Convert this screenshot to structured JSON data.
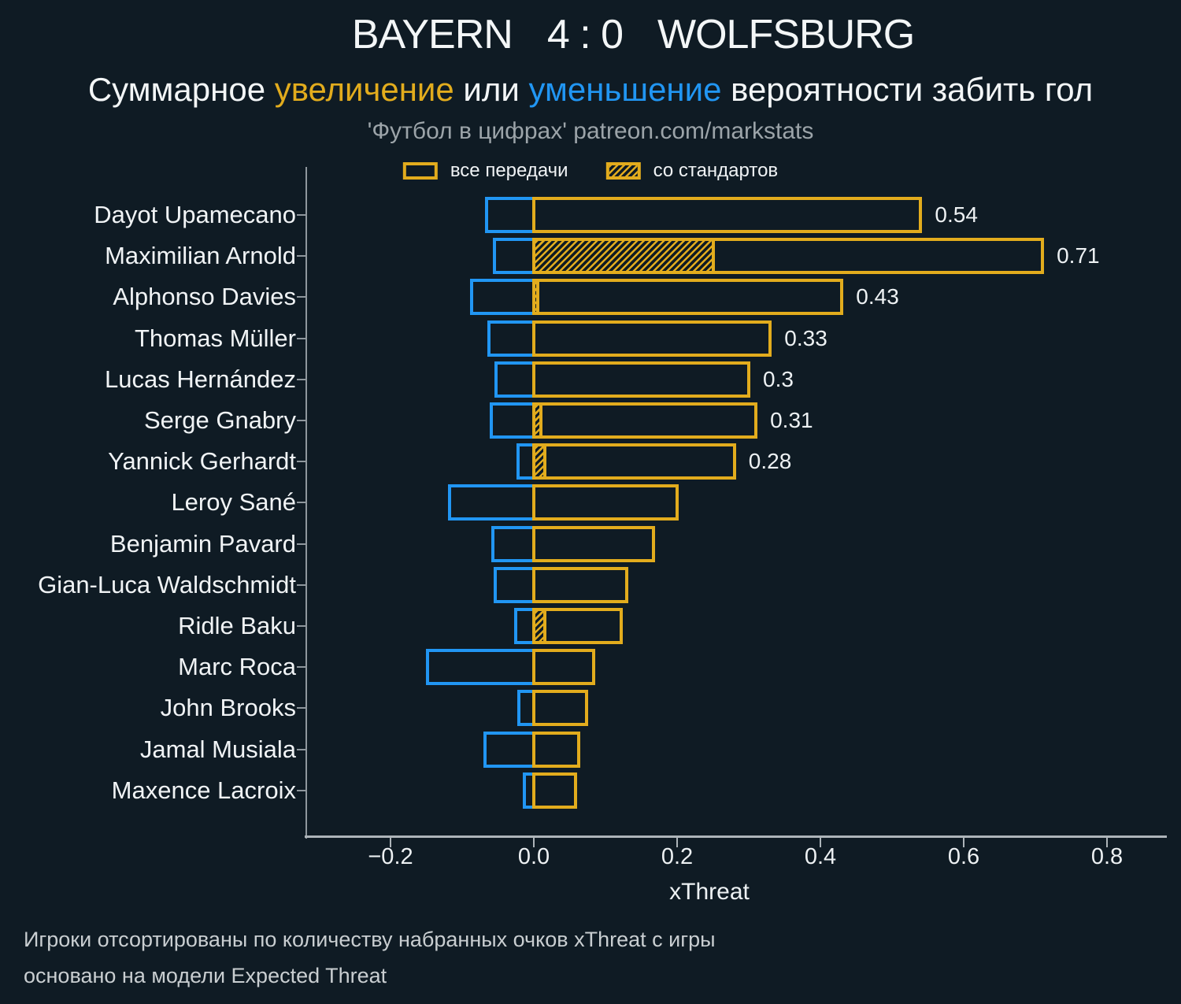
{
  "header": {
    "home_team": "BAYERN",
    "score": "4 : 0",
    "away_team": "WOLFSBURG",
    "subtitle": {
      "prefix": "Суммарное ",
      "increase_word": "увеличение",
      "middle": " или ",
      "decrease_word": "уменьшение",
      "suffix": " вероятности забить гол"
    },
    "source": "'Футбол в цифрах' patreon.com/markstats"
  },
  "legend": {
    "all_passes": "все передачи",
    "set_pieces": "со стандартов"
  },
  "colors": {
    "background": "#0f1b24",
    "increase": "#e2ac1d",
    "decrease": "#2196f3",
    "text": "#f0f3f5",
    "muted": "#9ca4a9",
    "axis": "#8f979d"
  },
  "chart_data": {
    "type": "bar",
    "orientation": "horizontal",
    "title": "BAYERN 4 : 0 WOLFSBURG",
    "xlabel": "xThreat",
    "x_ticks": [
      -0.2,
      0.0,
      0.2,
      0.4,
      0.6,
      0.8
    ],
    "xlim": [
      -0.319,
      0.883
    ],
    "grid": false,
    "legend_position": "top",
    "players": [
      {
        "name": "Dayot Upamecano",
        "increase": 0.54,
        "decrease": -0.066,
        "set_pieces": 0,
        "label": "0.54"
      },
      {
        "name": "Maximilian Arnold",
        "increase": 0.71,
        "decrease": -0.055,
        "set_pieces": 0.25,
        "label": "0.71"
      },
      {
        "name": "Alphonso Davies",
        "increase": 0.43,
        "decrease": -0.087,
        "set_pieces": 0.005,
        "label": "0.43"
      },
      {
        "name": "Thomas Müller",
        "increase": 0.33,
        "decrease": -0.063,
        "set_pieces": 0,
        "label": "0.33"
      },
      {
        "name": "Lucas Hernández",
        "increase": 0.3,
        "decrease": -0.053,
        "set_pieces": 0,
        "label": "0.3"
      },
      {
        "name": "Serge Gnabry",
        "increase": 0.31,
        "decrease": -0.059,
        "set_pieces": 0.01,
        "label": "0.31"
      },
      {
        "name": "Yannick Gerhardt",
        "increase": 0.28,
        "decrease": -0.022,
        "set_pieces": 0.015,
        "label": "0.28"
      },
      {
        "name": "Leroy Sané",
        "increase": 0.2,
        "decrease": -0.118,
        "set_pieces": 0,
        "label": null
      },
      {
        "name": "Benjamin Pavard",
        "increase": 0.167,
        "decrease": -0.057,
        "set_pieces": 0,
        "label": null
      },
      {
        "name": "Gian-Luca Waldschmidt",
        "increase": 0.13,
        "decrease": -0.054,
        "set_pieces": 0,
        "label": null
      },
      {
        "name": "Ridle Baku",
        "increase": 0.122,
        "decrease": -0.025,
        "set_pieces": 0.015,
        "label": null
      },
      {
        "name": "Marc Roca",
        "increase": 0.083,
        "decrease": -0.148,
        "set_pieces": 0,
        "label": null
      },
      {
        "name": "John Brooks",
        "increase": 0.074,
        "decrease": -0.021,
        "set_pieces": 0,
        "label": null
      },
      {
        "name": "Jamal Musiala",
        "increase": 0.063,
        "decrease": -0.068,
        "set_pieces": 0,
        "label": null
      },
      {
        "name": "Maxence Lacroix",
        "increase": 0.058,
        "decrease": -0.013,
        "set_pieces": 0,
        "label": null
      }
    ]
  },
  "footer": {
    "line1": "Игроки отсортированы по количеству набранных очков xThreat с игры",
    "line2": "основано на модели Expected Threat"
  }
}
